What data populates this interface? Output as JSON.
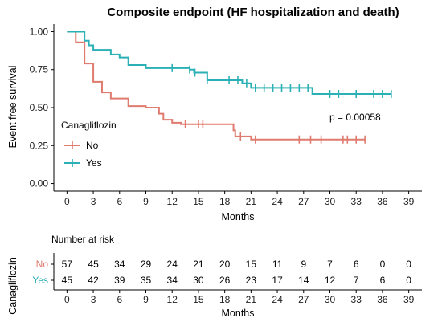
{
  "colors": {
    "no": "#E07B6F",
    "yes": "#2BB0B5"
  },
  "chart_data": [
    {
      "type": "line",
      "subtype": "kaplan-meier",
      "title": "Composite endpoint (HF hospitalization and death)",
      "xlabel": "Months",
      "ylabel": "Event free survival",
      "xlim": [
        -1.5,
        40.5
      ],
      "ylim": [
        -0.05,
        1.05
      ],
      "x_ticks": [
        0,
        3,
        6,
        9,
        12,
        15,
        18,
        21,
        24,
        27,
        30,
        33,
        36,
        39
      ],
      "y_ticks": [
        {
          "value": 0.0,
          "label": "0.00"
        },
        {
          "value": 0.25,
          "label": "0.25"
        },
        {
          "value": 0.5,
          "label": "0.50"
        },
        {
          "value": 0.75,
          "label": "0.75"
        },
        {
          "value": 1.0,
          "label": "1.00"
        }
      ],
      "legend_title": "Canagliflozin",
      "legend_position": "center-left",
      "annotation": "p = 0.00058",
      "series": [
        {
          "name": "No",
          "color": "#E07B6F",
          "steps": [
            [
              0,
              1.0
            ],
            [
              1,
              0.93
            ],
            [
              2,
              0.79
            ],
            [
              3,
              0.67
            ],
            [
              4,
              0.6
            ],
            [
              5,
              0.56
            ],
            [
              7,
              0.51
            ],
            [
              9,
              0.5
            ],
            [
              10.5,
              0.46
            ],
            [
              11,
              0.42
            ],
            [
              12,
              0.4
            ],
            [
              13,
              0.39
            ],
            [
              19,
              0.35
            ],
            [
              19.2,
              0.31
            ],
            [
              21,
              0.29
            ],
            [
              34,
              0.29
            ]
          ],
          "censored": [
            13.5,
            15,
            15.5,
            19.8,
            21.5,
            26.5,
            27.8,
            29,
            31.5,
            32,
            33,
            34
          ]
        },
        {
          "name": "Yes",
          "color": "#2BB0B5",
          "steps": [
            [
              0,
              1.0
            ],
            [
              2,
              0.94
            ],
            [
              2.5,
              0.91
            ],
            [
              3,
              0.88
            ],
            [
              5,
              0.85
            ],
            [
              6,
              0.83
            ],
            [
              7,
              0.78
            ],
            [
              9,
              0.76
            ],
            [
              10,
              0.76
            ],
            [
              14,
              0.75
            ],
            [
              14.5,
              0.73
            ],
            [
              16,
              0.68
            ],
            [
              20,
              0.66
            ],
            [
              21,
              0.63
            ],
            [
              27.8,
              0.63
            ],
            [
              28,
              0.59
            ],
            [
              37,
              0.59
            ]
          ],
          "censored": [
            12,
            14,
            14.6,
            16,
            18.5,
            19.5,
            20.5,
            21.5,
            22.5,
            23.5,
            24.5,
            25.5,
            26.5,
            27.5,
            30,
            31,
            33,
            35,
            36,
            37
          ]
        }
      ]
    },
    {
      "type": "table",
      "title": "Number at risk",
      "xlabel": "Months",
      "ylabel": "Canagliflozin",
      "x_ticks": [
        0,
        3,
        6,
        9,
        12,
        15,
        18,
        21,
        24,
        27,
        30,
        33,
        36,
        39
      ],
      "rows": [
        {
          "label": "No",
          "color": "#E07B6F",
          "values": [
            57,
            45,
            34,
            29,
            24,
            21,
            20,
            15,
            11,
            9,
            7,
            6,
            0,
            0
          ]
        },
        {
          "label": "Yes",
          "color": "#2BB0B5",
          "values": [
            45,
            42,
            39,
            35,
            34,
            30,
            26,
            23,
            17,
            14,
            12,
            7,
            6,
            0
          ]
        }
      ]
    }
  ]
}
